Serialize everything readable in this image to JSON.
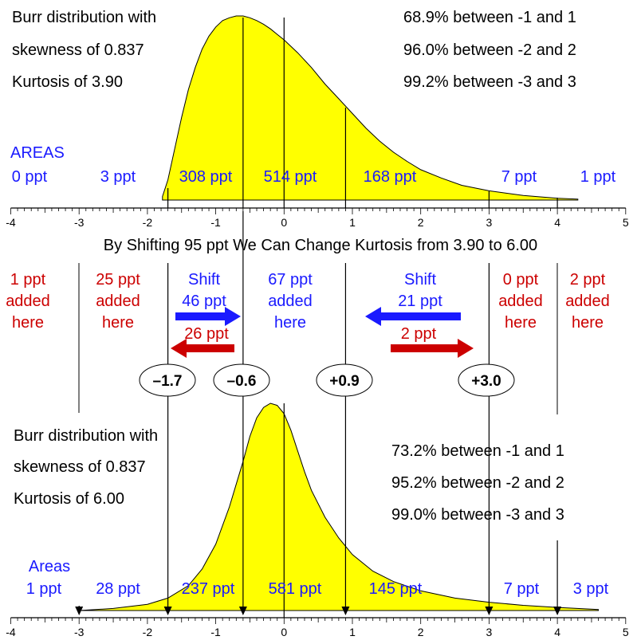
{
  "top": {
    "info": [
      "Burr distribution with",
      "skewness of 0.837",
      "Kurtosis of 3.90"
    ],
    "pcts": [
      "68.9% between -1 and 1",
      "96.0% between -2 and 2",
      "99.2% between -3 and 3"
    ],
    "areas_label": "AREAS",
    "areas": [
      "0 ppt",
      "3 ppt",
      "308 ppt",
      "514 ppt",
      "168 ppt",
      "7 ppt",
      "1 ppt"
    ],
    "dividers": [
      -0.6,
      0,
      0.9,
      3.0,
      4.0
    ],
    "left_boundary": -1.7
  },
  "bottom": {
    "info": [
      "Burr distribution with",
      "skewness of 0.837",
      "Kurtosis of 6.00"
    ],
    "pcts": [
      "73.2% between -1 and 1",
      "95.2% between -2 and 2",
      "99.0% between -3 and 3"
    ],
    "areas_label": "Areas",
    "areas": [
      "1 ppt",
      "28 ppt",
      "237 ppt",
      "581 ppt",
      "145 ppt",
      "7 ppt",
      "3 ppt"
    ],
    "arrow_points": [
      -3.0,
      -1.7,
      -0.6,
      0.9,
      3.0,
      4.0
    ],
    "center_line": 0
  },
  "axis": {
    "min": -4,
    "max": 5,
    "ticks": [
      "-4",
      "-3",
      "-2",
      "-1",
      "0",
      "1",
      "2",
      "3",
      "4",
      "5"
    ]
  },
  "middle": {
    "heading": "By Shifting 95 ppt We Can Change Kurtosis from 3.90 to 6.00",
    "added": [
      [
        "1 ppt",
        "added",
        "here"
      ],
      [
        "25 ppt",
        "added",
        "here"
      ],
      [
        "67 ppt",
        "added",
        "here"
      ],
      [
        "0 ppt",
        "added",
        "here"
      ],
      [
        "2 ppt",
        "added",
        "here"
      ]
    ],
    "shift_left": {
      "word": "Shift",
      "blue": "46 ppt",
      "red": "26 ppt"
    },
    "shift_right": {
      "word": "Shift",
      "blue": "21 ppt",
      "red": "2 ppt"
    },
    "cut_labels": [
      "–1.7",
      "–0.6",
      "+0.9",
      "+3.0"
    ],
    "cut_points": [
      -1.7,
      -0.6,
      0.9,
      3.0
    ]
  },
  "colors": {
    "fill": "#ffff00",
    "blue": "#1a1aff",
    "red": "#cc0000",
    "ink": "#000000"
  }
}
